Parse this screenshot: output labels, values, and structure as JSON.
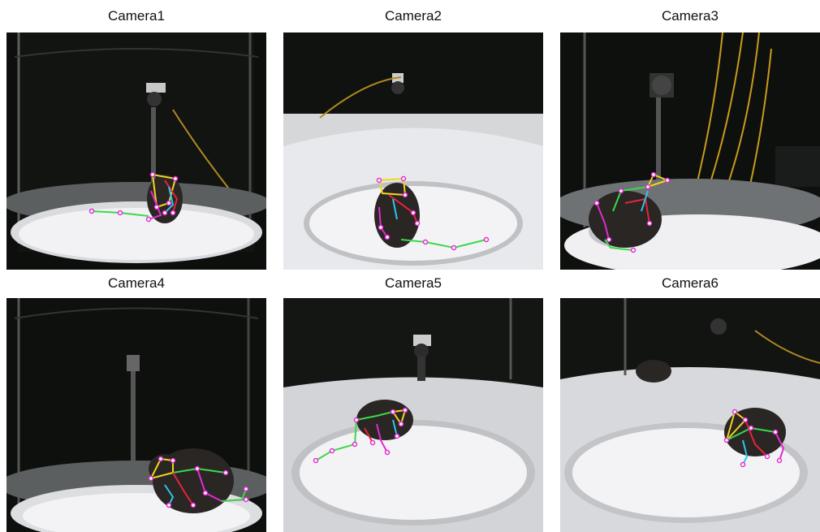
{
  "panels": [
    {
      "title": "Camera1"
    },
    {
      "title": "Camera2"
    },
    {
      "title": "Camera3"
    },
    {
      "title": "Camera4"
    },
    {
      "title": "Camera5"
    },
    {
      "title": "Camera6"
    }
  ],
  "colors": {
    "background": "#ffffff",
    "arena_floor": "#ededf0",
    "enclosure_dark": "#0e100e",
    "mouse_body": "#2a2624",
    "skeleton_green": "#39d94a",
    "skeleton_red": "#e8233b",
    "skeleton_yellow": "#f2d51c",
    "skeleton_cyan": "#2fc6e8",
    "skeleton_magenta": "#e02ccf",
    "skeleton_blue": "#2d7fe0",
    "cable_orange": "#c99a1c"
  }
}
